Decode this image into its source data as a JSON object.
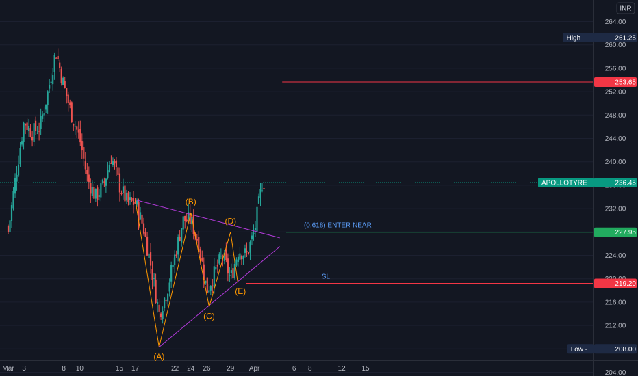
{
  "currency": "INR",
  "chart_data": {
    "type": "candlestick",
    "symbol": "APOLLOTYRE",
    "currency": "INR",
    "y_ticks": [
      264,
      260,
      256,
      252,
      248,
      244,
      240,
      236,
      232,
      228,
      224,
      220,
      216,
      212,
      208,
      204
    ],
    "y_tick_labels": [
      "264.00",
      "260.00",
      "256.00",
      "252.00",
      "248.00",
      "244.00",
      "240.00",
      "236.00",
      "232.00",
      "228.00",
      "224.00",
      "220.00",
      "216.00",
      "212.00",
      "208.00",
      "204.00"
    ],
    "x_ticks": [
      {
        "label": "Mar",
        "day": 0
      },
      {
        "label": "3",
        "day": 2
      },
      {
        "label": "8",
        "day": 7
      },
      {
        "label": "10",
        "day": 9
      },
      {
        "label": "15",
        "day": 14
      },
      {
        "label": "17",
        "day": 16
      },
      {
        "label": "22",
        "day": 21
      },
      {
        "label": "24",
        "day": 23
      },
      {
        "label": "26",
        "day": 25
      },
      {
        "label": "29",
        "day": 28
      },
      {
        "label": "Apr",
        "day": 31
      },
      {
        "label": "6",
        "day": 36
      },
      {
        "label": "8",
        "day": 38
      },
      {
        "label": "12",
        "day": 42
      },
      {
        "label": "15",
        "day": 45
      }
    ],
    "price_tags": [
      {
        "text": "High",
        "value": "261.25",
        "price": 261.25,
        "color": "#1e2a44",
        "text_color": "#ffffff"
      },
      {
        "text": "",
        "value": "253.65",
        "price": 253.65,
        "color": "#f23645",
        "text_color": "#ffffff"
      },
      {
        "text": "APOLLOTYRE",
        "value": "236.45",
        "price": 236.45,
        "color": "#089981",
        "text_color": "#ffffff"
      },
      {
        "text": "",
        "value": "227.95",
        "price": 227.95,
        "color": "#22ab5f",
        "text_color": "#ffffff"
      },
      {
        "text": "",
        "value": "219.20",
        "price": 219.2,
        "color": "#f23645",
        "text_color": "#ffffff"
      },
      {
        "text": "Low",
        "value": "208.00",
        "price": 208.0,
        "color": "#1e2a44",
        "text_color": "#ffffff"
      }
    ],
    "last_price": 236.45,
    "target_price": 253.65,
    "entry_price": 227.95,
    "stop_loss": 219.2,
    "entry_label": "(0.618) ENTER NEAR",
    "sl_label": "SL",
    "wave_points": [
      {
        "label": "(A)",
        "day": 19.0,
        "price": 208.3
      },
      {
        "label": "(B)",
        "day": 23.0,
        "price": 231.3
      },
      {
        "label": "(C)",
        "day": 25.3,
        "price": 215.2
      },
      {
        "label": "(D)",
        "day": 28.0,
        "price": 228.0
      },
      {
        "label": "(E)",
        "day": 28.9,
        "price": 219.5
      }
    ],
    "wave_start": {
      "day": 16.0,
      "price": 233.5
    },
    "triangle_upper": [
      {
        "day": 16.0,
        "price": 233.5
      },
      {
        "day": 34.2,
        "price": 227.0
      }
    ],
    "triangle_lower": [
      {
        "day": 19.0,
        "price": 208.3
      },
      {
        "day": 34.2,
        "price": 225.5
      }
    ],
    "colors": {
      "up": "#26a69a",
      "down": "#ef5350",
      "triangle": "#b23ad9",
      "wave": "#ff9800",
      "target": "#f23645",
      "entry": "#22ab5f",
      "sl": "#f23645",
      "last": "#089981"
    }
  }
}
